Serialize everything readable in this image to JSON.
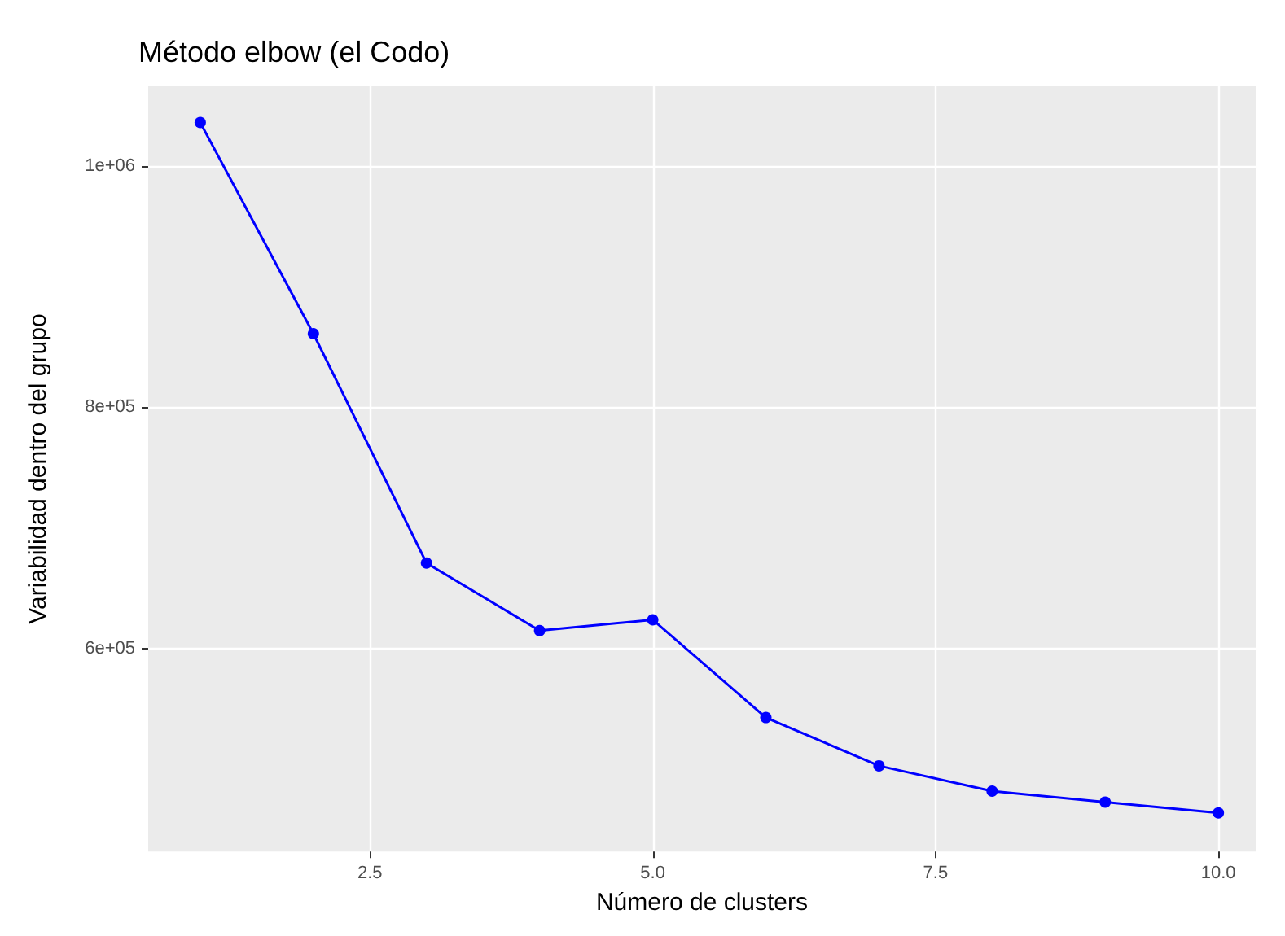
{
  "chart_data": {
    "type": "line",
    "title": "Método elbow (el Codo)",
    "xlabel": "Número de clusters",
    "ylabel": "Variabilidad dentro del grupo",
    "x": [
      1,
      2,
      3,
      4,
      5,
      6,
      7,
      8,
      9,
      10
    ],
    "series": [
      {
        "color": "#0000ff",
        "values": [
          1036000,
          861000,
          671000,
          615000,
          624000,
          543000,
          503000,
          482000,
          473000,
          464000
        ]
      }
    ],
    "xlim": [
      0.54,
      10.33
    ],
    "xticks": [
      2.5,
      {
        "value": 5,
        "label": "5.0"
      },
      7.5,
      {
        "value": 10,
        "label": "10.0"
      }
    ],
    "ylim": [
      432000,
      1066000
    ],
    "yticks": [
      {
        "value": 600000,
        "label": "6e+05"
      },
      {
        "value": 800000,
        "label": "8e+05"
      },
      {
        "value": 1000000,
        "label": "1e+06"
      }
    ],
    "grid": true,
    "marker": "circle",
    "line_style": "solid"
  }
}
